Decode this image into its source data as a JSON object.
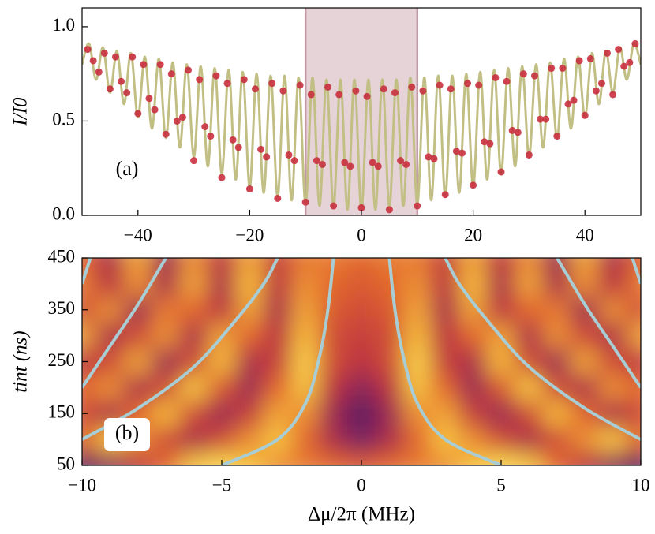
{
  "chart_data": [
    {
      "type": "scatter",
      "ylabel": "I/I0",
      "annotation": "(a)",
      "xlim": [
        -50,
        50
      ],
      "ylim": [
        0,
        1.1
      ],
      "xticks": [
        {
          "value": -40,
          "label": "−40"
        },
        {
          "value": -20,
          "label": "−20"
        },
        0,
        20,
        40
      ],
      "yticks": [
        {
          "value": 0,
          "label": "0.0"
        },
        {
          "value": 0.5,
          "label": "0.5"
        },
        {
          "value": 1,
          "label": "1.0"
        }
      ],
      "span": {
        "x": [
          -10,
          10
        ],
        "color": "#e6d3d8",
        "edge_color": "#c49aa6"
      },
      "series": [
        {
          "type": "scatter",
          "color": "#c9303f",
          "x": [
            -49,
            -48,
            -47,
            -46,
            -45,
            -44,
            -43,
            -42,
            -41,
            -40,
            -39,
            -38,
            -37,
            -36,
            -35,
            -34,
            -33,
            -32,
            -31,
            -30,
            -29,
            -28,
            -27,
            -26,
            -25,
            -24,
            -23,
            -22,
            -21,
            -20,
            -19,
            -18,
            -17,
            -16,
            -15,
            -14,
            -13,
            -12,
            -11,
            -10,
            -9,
            -8,
            -7,
            -6,
            -5,
            -4,
            -3,
            -2,
            -1,
            0,
            1,
            2,
            3,
            4,
            5,
            6,
            7,
            8,
            9,
            10,
            11,
            12,
            13,
            14,
            15,
            16,
            17,
            18,
            19,
            20,
            21,
            22,
            23,
            24,
            25,
            26,
            27,
            28,
            29,
            30,
            31,
            32,
            33,
            34,
            35,
            36,
            37,
            38,
            39,
            40,
            41,
            42,
            43,
            44,
            45,
            46,
            47,
            48,
            49
          ],
          "y": [
            0.88,
            0.82,
            0.76,
            0.86,
            0.67,
            0.84,
            0.71,
            0.65,
            0.84,
            0.54,
            0.8,
            0.62,
            0.56,
            0.8,
            0.43,
            0.75,
            0.5,
            0.52,
            0.77,
            0.29,
            0.72,
            0.47,
            0.42,
            0.74,
            0.2,
            0.7,
            0.4,
            0.36,
            0.72,
            0.14,
            0.67,
            0.35,
            0.31,
            0.7,
            0.09,
            0.66,
            0.32,
            0.29,
            0.69,
            0.07,
            0.64,
            0.29,
            0.27,
            0.68,
            0.05,
            0.64,
            0.28,
            0.26,
            0.66,
            0.04,
            0.63,
            0.28,
            0.26,
            0.67,
            0.03,
            0.65,
            0.29,
            0.27,
            0.68,
            0.05,
            0.66,
            0.31,
            0.3,
            0.69,
            0.11,
            0.67,
            0.34,
            0.33,
            0.7,
            0.16,
            0.69,
            0.39,
            0.38,
            0.73,
            0.23,
            0.71,
            0.45,
            0.44,
            0.75,
            0.32,
            0.74,
            0.51,
            0.51,
            0.78,
            0.42,
            0.78,
            0.59,
            0.61,
            0.82,
            0.53,
            0.83,
            0.66,
            0.7,
            0.86,
            0.64,
            0.88,
            0.79,
            0.81,
            0.91
          ]
        },
        {
          "type": "line",
          "color": "#c2bf85",
          "x": [
            -50,
            -48.75,
            -47.5,
            -46.25,
            -45,
            -43.75,
            -42.5,
            -41.25,
            -40,
            -38.75,
            -37.5,
            -36.25,
            -35,
            -33.75,
            -32.5,
            -31.25,
            -30,
            -28.75,
            -27.5,
            -26.25,
            -25,
            -23.75,
            -22.5,
            -21.25,
            -20,
            -18.75,
            -17.5,
            -16.25,
            -15,
            -13.75,
            -12.5,
            -11.25,
            -10,
            -8.75,
            -7.5,
            -6.25,
            -5,
            -3.75,
            -2.5,
            -1.25,
            0,
            1.25,
            2.5,
            3.75,
            5,
            6.25,
            7.5,
            8.75,
            10,
            11.25,
            12.5,
            13.75,
            15,
            16.25,
            17.5,
            18.75,
            20,
            21.25,
            22.5,
            23.75,
            25,
            26.25,
            27.5,
            28.75,
            30,
            31.25,
            32.5,
            33.75,
            35,
            36.25,
            37.5,
            38.75,
            40,
            41.25,
            42.5,
            43.75,
            45,
            46.25,
            47.5,
            48.75,
            50
          ],
          "y": [
            0.8,
            0.91,
            0.72,
            0.89,
            0.65,
            0.87,
            0.59,
            0.86,
            0.52,
            0.84,
            0.46,
            0.83,
            0.41,
            0.81,
            0.36,
            0.8,
            0.31,
            0.79,
            0.26,
            0.78,
            0.22,
            0.77,
            0.19,
            0.76,
            0.15,
            0.75,
            0.12,
            0.74,
            0.1,
            0.74,
            0.08,
            0.73,
            0.06,
            0.73,
            0.05,
            0.72,
            0.04,
            0.72,
            0.03,
            0.72,
            0.03,
            0.72,
            0.03,
            0.72,
            0.04,
            0.72,
            0.05,
            0.73,
            0.06,
            0.73,
            0.08,
            0.74,
            0.1,
            0.74,
            0.12,
            0.75,
            0.15,
            0.76,
            0.19,
            0.77,
            0.22,
            0.78,
            0.26,
            0.79,
            0.31,
            0.8,
            0.36,
            0.81,
            0.41,
            0.83,
            0.46,
            0.84,
            0.52,
            0.86,
            0.59,
            0.87,
            0.65,
            0.89,
            0.72,
            0.91,
            0.8
          ]
        }
      ]
    },
    {
      "type": "heatmap",
      "xlabel": "Δμ/2π (MHz)",
      "ylabel": "tint (ns)",
      "annotation": "(b)",
      "xlim": [
        -10,
        10
      ],
      "ylim": [
        50,
        450
      ],
      "xticks": [
        {
          "value": -10,
          "label": "−10"
        },
        {
          "value": -5,
          "label": "−5"
        },
        0,
        5,
        10
      ],
      "yticks": [
        50,
        150,
        250,
        350,
        450
      ],
      "clim": [
        0,
        1
      ],
      "colorscale": [
        "#3a1860",
        "#7a2462",
        "#bb3343",
        "#e2672e",
        "#f6b73a",
        "#fbe15a"
      ],
      "x": [
        -10,
        -9,
        -8,
        -7,
        -6,
        -5,
        -4,
        -3,
        -2,
        -1,
        0,
        1,
        2,
        3,
        4,
        5,
        6,
        7,
        8,
        9,
        10
      ],
      "y": [
        50,
        100,
        150,
        200,
        250,
        300,
        350,
        400,
        450
      ],
      "z": [
        [
          0.1,
          0.25,
          0.4,
          0.6,
          0.85,
          0.95,
          0.85,
          0.7,
          0.65,
          0.6,
          0.55,
          0.6,
          0.65,
          0.7,
          0.85,
          0.95,
          0.85,
          0.6,
          0.4,
          0.25,
          0.1
        ],
        [
          0.6,
          0.85,
          0.7,
          0.5,
          0.35,
          0.5,
          0.7,
          0.85,
          0.6,
          0.35,
          0.2,
          0.35,
          0.6,
          0.85,
          0.7,
          0.5,
          0.35,
          0.5,
          0.7,
          0.85,
          0.6
        ],
        [
          0.5,
          0.35,
          0.6,
          0.8,
          0.5,
          0.3,
          0.45,
          0.75,
          0.7,
          0.3,
          0.1,
          0.3,
          0.7,
          0.75,
          0.45,
          0.3,
          0.5,
          0.8,
          0.6,
          0.35,
          0.5
        ],
        [
          0.6,
          0.7,
          0.35,
          0.5,
          0.85,
          0.55,
          0.3,
          0.6,
          0.85,
          0.4,
          0.25,
          0.4,
          0.85,
          0.6,
          0.3,
          0.55,
          0.85,
          0.5,
          0.35,
          0.7,
          0.6
        ],
        [
          0.4,
          0.5,
          0.75,
          0.3,
          0.5,
          0.8,
          0.35,
          0.45,
          0.9,
          0.5,
          0.4,
          0.5,
          0.9,
          0.45,
          0.35,
          0.8,
          0.5,
          0.3,
          0.75,
          0.5,
          0.4
        ],
        [
          0.75,
          0.35,
          0.5,
          0.7,
          0.35,
          0.75,
          0.6,
          0.4,
          0.8,
          0.5,
          0.45,
          0.5,
          0.8,
          0.4,
          0.6,
          0.75,
          0.35,
          0.7,
          0.5,
          0.35,
          0.75
        ],
        [
          0.5,
          0.7,
          0.3,
          0.65,
          0.6,
          0.4,
          0.75,
          0.35,
          0.75,
          0.55,
          0.5,
          0.55,
          0.75,
          0.35,
          0.75,
          0.4,
          0.6,
          0.65,
          0.3,
          0.7,
          0.5
        ],
        [
          0.65,
          0.4,
          0.7,
          0.35,
          0.75,
          0.35,
          0.8,
          0.4,
          0.7,
          0.6,
          0.55,
          0.6,
          0.7,
          0.4,
          0.8,
          0.35,
          0.75,
          0.35,
          0.7,
          0.4,
          0.65
        ],
        [
          0.6,
          0.35,
          0.75,
          0.3,
          0.7,
          0.4,
          0.75,
          0.45,
          0.65,
          0.65,
          0.6,
          0.65,
          0.65,
          0.45,
          0.75,
          0.4,
          0.7,
          0.3,
          0.75,
          0.35,
          0.6
        ]
      ],
      "curve_color": "#a8cdd4",
      "curves": [
        {
          "x": [
            -5,
            -3,
            -2,
            -1.5,
            -1.2,
            -1
          ],
          "y": [
            50,
            100,
            170,
            260,
            350,
            450
          ]
        },
        {
          "x": [
            -10,
            -8,
            -6,
            -4.5,
            -3.5,
            -3
          ],
          "y": [
            100,
            160,
            240,
            330,
            400,
            450
          ]
        },
        {
          "x": [
            -10,
            -9,
            -8,
            -7
          ],
          "y": [
            200,
            280,
            360,
            450
          ]
        },
        {
          "x": [
            -10,
            -9.7
          ],
          "y": [
            400,
            450
          ]
        },
        {
          "x": [
            5,
            3,
            2,
            1.5,
            1.2,
            1
          ],
          "y": [
            50,
            100,
            170,
            260,
            350,
            450
          ]
        },
        {
          "x": [
            10,
            8,
            6,
            4.5,
            3.5,
            3
          ],
          "y": [
            100,
            160,
            240,
            330,
            400,
            450
          ]
        },
        {
          "x": [
            10,
            9,
            8,
            7
          ],
          "y": [
            200,
            280,
            360,
            450
          ]
        },
        {
          "x": [
            10,
            9.7
          ],
          "y": [
            400,
            450
          ]
        }
      ]
    }
  ]
}
